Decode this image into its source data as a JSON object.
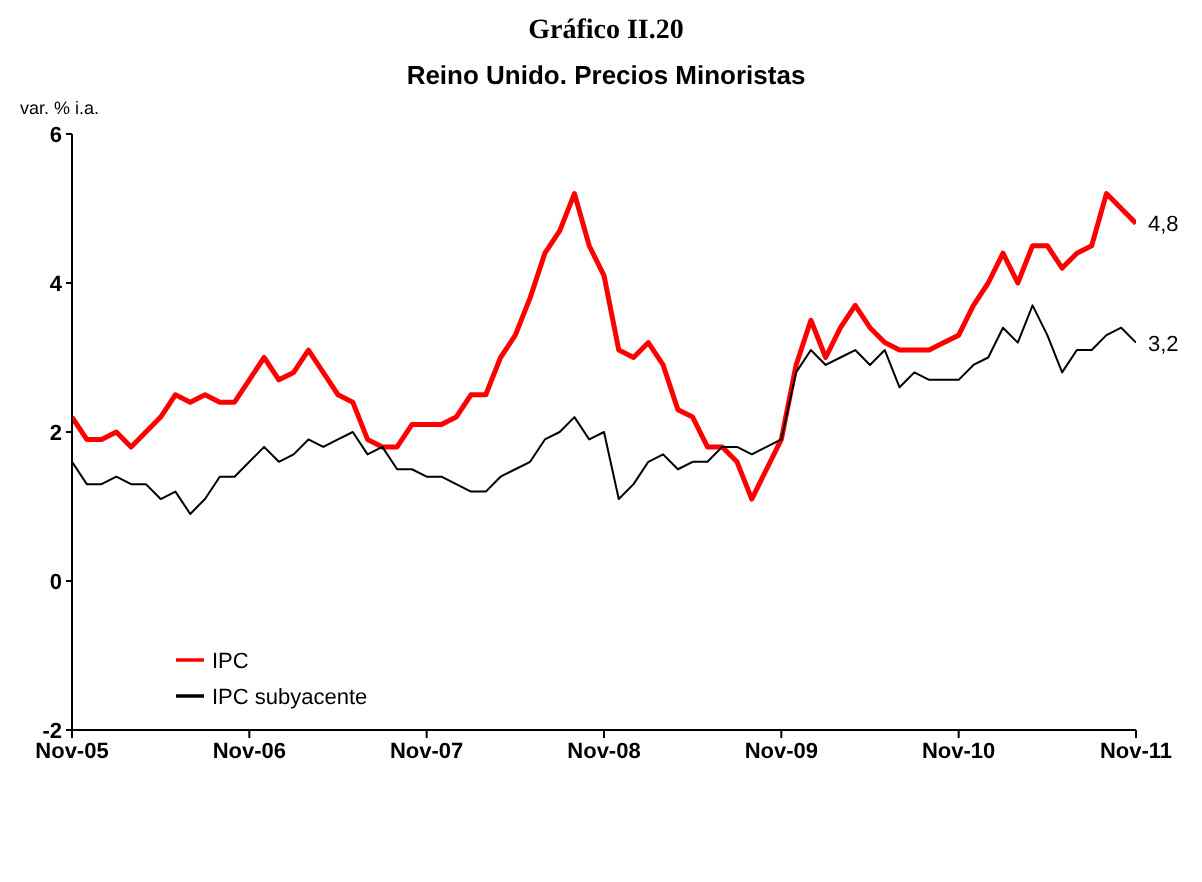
{
  "chart_data": {
    "type": "line",
    "title": "Gráfico II.20",
    "subtitle": "Reino Unido. Precios Minoristas",
    "ylabel": "var. % i.a.",
    "categories": [
      "Nov-05",
      null,
      null,
      null,
      null,
      null,
      null,
      null,
      null,
      null,
      null,
      null,
      "Nov-06",
      null,
      null,
      null,
      null,
      null,
      null,
      null,
      null,
      null,
      null,
      null,
      "Nov-07",
      null,
      null,
      null,
      null,
      null,
      null,
      null,
      null,
      null,
      null,
      null,
      "Nov-08",
      null,
      null,
      null,
      null,
      null,
      null,
      null,
      null,
      null,
      null,
      null,
      "Nov-09",
      null,
      null,
      null,
      null,
      null,
      null,
      null,
      null,
      null,
      null,
      null,
      "Nov-10",
      null,
      null,
      null,
      null,
      null,
      null,
      null,
      null,
      null,
      null,
      null,
      "Nov-11"
    ],
    "series": [
      {
        "name": "IPC",
        "color": "#ff0000",
        "values": [
          2.2,
          1.9,
          1.9,
          2.0,
          1.8,
          2.0,
          2.2,
          2.5,
          2.4,
          2.5,
          2.4,
          2.4,
          2.7,
          3.0,
          2.7,
          2.8,
          3.1,
          2.8,
          2.5,
          2.4,
          1.9,
          1.8,
          1.8,
          2.1,
          2.1,
          2.1,
          2.2,
          2.5,
          2.5,
          3.0,
          3.3,
          3.8,
          4.4,
          4.7,
          5.2,
          4.5,
          4.1,
          3.1,
          3.0,
          3.2,
          2.9,
          2.3,
          2.2,
          1.8,
          1.8,
          1.6,
          1.1,
          1.5,
          1.9,
          2.9,
          3.5,
          3.0,
          3.4,
          3.7,
          3.4,
          3.2,
          3.1,
          3.1,
          3.1,
          3.2,
          3.3,
          3.7,
          4.0,
          4.4,
          4.0,
          4.5,
          4.5,
          4.2,
          4.4,
          4.5,
          5.2,
          5.0,
          4.8
        ],
        "value_labels": [
          null,
          null,
          null,
          null,
          null,
          null,
          null,
          null,
          null,
          null,
          null,
          null,
          null,
          null,
          null,
          null,
          null,
          null,
          null,
          null,
          null,
          null,
          null,
          null,
          null,
          null,
          null,
          null,
          null,
          null,
          null,
          null,
          null,
          null,
          null,
          null,
          null,
          null,
          null,
          null,
          null,
          null,
          null,
          null,
          null,
          null,
          null,
          null,
          null,
          null,
          null,
          null,
          null,
          null,
          null,
          null,
          null,
          null,
          null,
          null,
          null,
          null,
          null,
          null,
          null,
          null,
          null,
          null,
          null,
          null,
          null,
          null,
          "4,8"
        ]
      },
      {
        "name": "IPC subyacente",
        "color": "#000000",
        "values": [
          1.6,
          1.3,
          1.3,
          1.4,
          1.3,
          1.3,
          1.1,
          1.2,
          0.9,
          1.1,
          1.4,
          1.4,
          1.6,
          1.8,
          1.6,
          1.7,
          1.9,
          1.8,
          1.9,
          2.0,
          1.7,
          1.8,
          1.5,
          1.5,
          1.4,
          1.4,
          1.3,
          1.2,
          1.2,
          1.4,
          1.5,
          1.6,
          1.9,
          2.0,
          2.2,
          1.9,
          2.0,
          1.1,
          1.3,
          1.6,
          1.7,
          1.5,
          1.6,
          1.6,
          1.8,
          1.8,
          1.7,
          1.8,
          1.9,
          2.8,
          3.1,
          2.9,
          3.0,
          3.1,
          2.9,
          3.1,
          2.6,
          2.8,
          2.7,
          2.7,
          2.7,
          2.9,
          3.0,
          3.4,
          3.2,
          3.7,
          3.3,
          2.8,
          3.1,
          3.1,
          3.3,
          3.4,
          3.2
        ],
        "value_labels": [
          null,
          null,
          null,
          null,
          null,
          null,
          null,
          null,
          null,
          null,
          null,
          null,
          null,
          null,
          null,
          null,
          null,
          null,
          null,
          null,
          null,
          null,
          null,
          null,
          null,
          null,
          null,
          null,
          null,
          null,
          null,
          null,
          null,
          null,
          null,
          null,
          null,
          null,
          null,
          null,
          null,
          null,
          null,
          null,
          null,
          null,
          null,
          null,
          null,
          null,
          null,
          null,
          null,
          null,
          null,
          null,
          null,
          null,
          null,
          null,
          null,
          null,
          null,
          null,
          null,
          null,
          null,
          null,
          null,
          null,
          null,
          null,
          "3,2"
        ]
      }
    ],
    "ylim": [
      -2,
      6
    ],
    "yticks": [
      -2,
      0,
      2,
      4,
      6
    ],
    "grid": false,
    "legend": "bottom left",
    "marker": "none",
    "line_style": "solid"
  }
}
